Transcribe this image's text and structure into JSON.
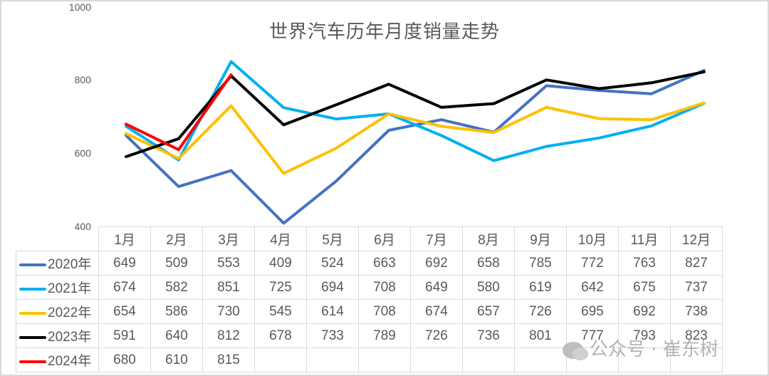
{
  "chart_data": {
    "type": "line",
    "title": "世界汽车历年月度销量走势",
    "xlabel": "",
    "ylabel": "",
    "ylim": [
      400,
      1000
    ],
    "yticks": [
      400,
      600,
      800,
      1000
    ],
    "grid": false,
    "legend_position": "data-table-left",
    "categories": [
      "1月",
      "2月",
      "3月",
      "4月",
      "5月",
      "6月",
      "7月",
      "8月",
      "9月",
      "10月",
      "11月",
      "12月"
    ],
    "series": [
      {
        "name": "2020年",
        "color": "#4472c4",
        "values": [
          649,
          509,
          553,
          409,
          524,
          663,
          692,
          658,
          785,
          772,
          763,
          827
        ]
      },
      {
        "name": "2021年",
        "color": "#00b0f0",
        "values": [
          674,
          582,
          851,
          725,
          694,
          708,
          649,
          580,
          619,
          642,
          675,
          737
        ]
      },
      {
        "name": "2022年",
        "color": "#ffc000",
        "values": [
          654,
          586,
          730,
          545,
          614,
          708,
          674,
          657,
          726,
          695,
          692,
          738
        ]
      },
      {
        "name": "2023年",
        "color": "#000000",
        "values": [
          591,
          640,
          812,
          678,
          733,
          789,
          726,
          736,
          801,
          777,
          793,
          823
        ]
      },
      {
        "name": "2024年",
        "color": "#ff0000",
        "values": [
          680,
          610,
          815
        ]
      }
    ]
  },
  "title": "世界汽车历年月度销量走势",
  "yaxis": {
    "ticks": [
      "1000",
      "800",
      "600",
      "400"
    ]
  },
  "table": {
    "months": [
      "1月",
      "2月",
      "3月",
      "4月",
      "5月",
      "6月",
      "7月",
      "8月",
      "9月",
      "10月",
      "11月",
      "12月"
    ],
    "rows": [
      {
        "label": "2020年",
        "cells": [
          "649",
          "509",
          "553",
          "409",
          "524",
          "663",
          "692",
          "658",
          "785",
          "772",
          "763",
          "827"
        ]
      },
      {
        "label": "2021年",
        "cells": [
          "674",
          "582",
          "851",
          "725",
          "694",
          "708",
          "649",
          "580",
          "619",
          "642",
          "675",
          "737"
        ]
      },
      {
        "label": "2022年",
        "cells": [
          "654",
          "586",
          "730",
          "545",
          "614",
          "708",
          "674",
          "657",
          "726",
          "695",
          "692",
          "738"
        ]
      },
      {
        "label": "2023年",
        "cells": [
          "591",
          "640",
          "812",
          "678",
          "733",
          "789",
          "726",
          "736",
          "801",
          "777",
          "793",
          "823"
        ]
      },
      {
        "label": "2024年",
        "cells": [
          "680",
          "610",
          "815",
          "",
          "",
          "",
          "",
          "",
          "",
          "",
          "",
          ""
        ]
      }
    ]
  },
  "watermark": {
    "text": "公众号 · 崔东树"
  }
}
